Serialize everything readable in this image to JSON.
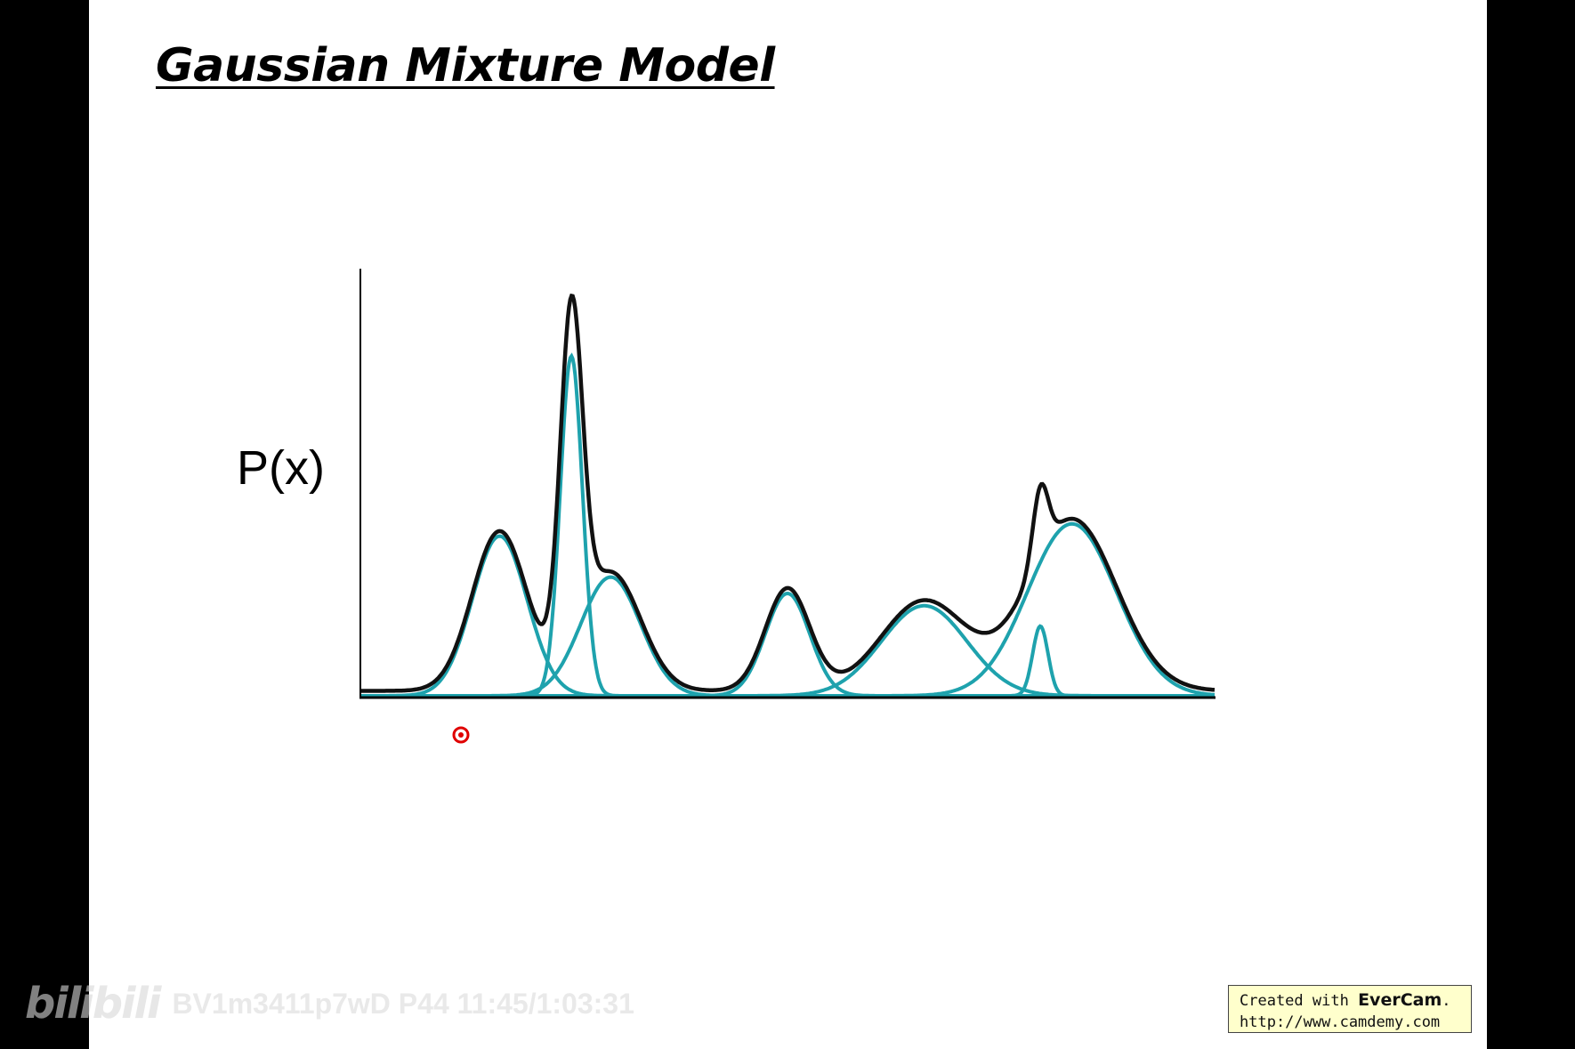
{
  "slide": {
    "title": "Gaussian Mixture Model"
  },
  "chart_data": {
    "type": "line",
    "title": "Gaussian Mixture Model",
    "xlabel": "",
    "ylabel": "P(x)",
    "xlim": [
      0,
      100
    ],
    "ylim": [
      0,
      100
    ],
    "grid": false,
    "legend": "none",
    "components": [
      {
        "mean": 16.3,
        "sd": 3.2,
        "amplitude": 39
      },
      {
        "mean": 24.7,
        "sd": 1.3,
        "amplitude": 83
      },
      {
        "mean": 29.3,
        "sd": 3.5,
        "amplitude": 29
      },
      {
        "mean": 50.0,
        "sd": 2.6,
        "amplitude": 25
      },
      {
        "mean": 66.0,
        "sd": 5.0,
        "amplitude": 22
      },
      {
        "mean": 79.6,
        "sd": 0.9,
        "amplitude": 17
      },
      {
        "mean": 83.3,
        "sd": 5.2,
        "amplitude": 42
      }
    ],
    "mixture_color": "#111111",
    "component_color": "#1ea2ad"
  },
  "cursor": {
    "color": "#e00000"
  },
  "watermark": {
    "logo": "bilibili",
    "text": "BV1m3411p7wD P44 11:45/1:03:31"
  },
  "evercam": {
    "line1_prefix": "Created with",
    "brand": "EverCam",
    "line1_suffix": ".",
    "line2": "http://www.camdemy.com"
  }
}
